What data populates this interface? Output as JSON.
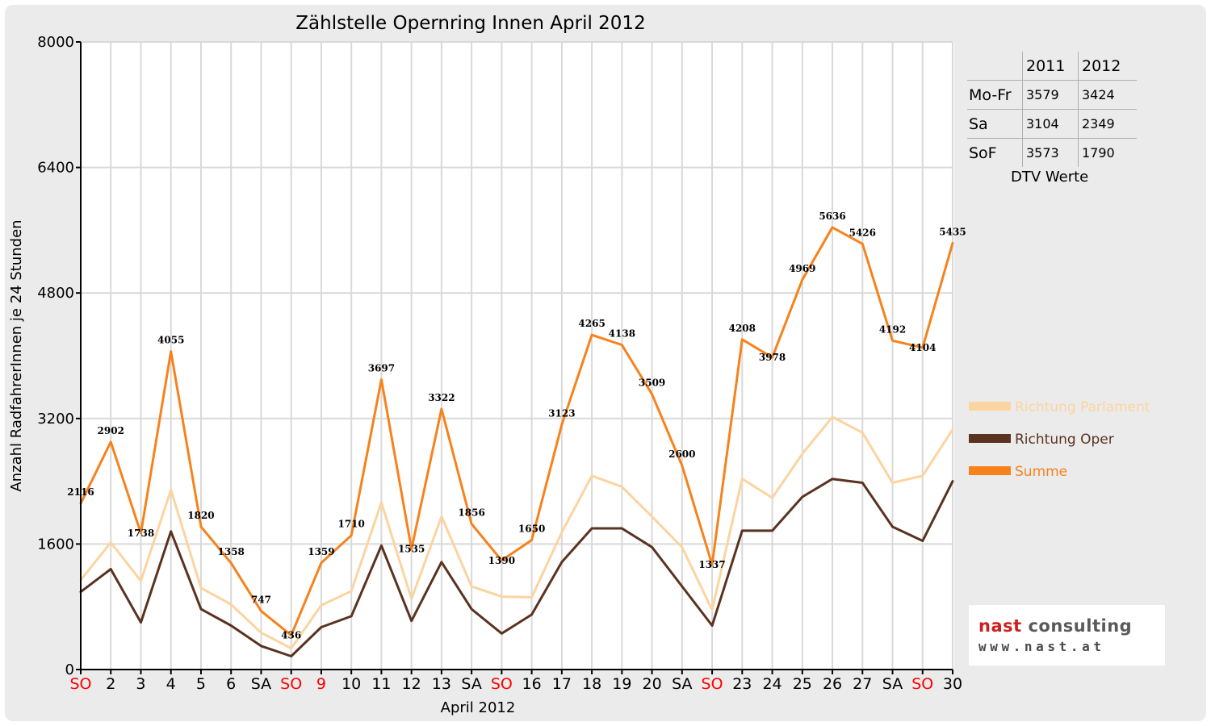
{
  "chart_data": {
    "type": "line",
    "title": "Zählstelle Opernring Innen April 2012",
    "xlabel": "April 2012",
    "ylabel": "Anzahl RadfahrerInnen je 24 Stunden",
    "ylim": [
      0,
      8000
    ],
    "yticks": [
      "0",
      "1600",
      "3200",
      "4800",
      "6400",
      "8000"
    ],
    "grid": true,
    "legend_position": "right",
    "categories": [
      "SO",
      "2",
      "3",
      "4",
      "5",
      "6",
      "SA",
      "SO",
      "9",
      "10",
      "11",
      "12",
      "13",
      "SA",
      "SO",
      "16",
      "17",
      "18",
      "19",
      "20",
      "SA",
      "SO",
      "23",
      "24",
      "25",
      "26",
      "27",
      "SA",
      "SO",
      "30"
    ],
    "red_categories": [
      0,
      7,
      8,
      14,
      21,
      28
    ],
    "series": [
      {
        "name": "Richtung Parlament",
        "color": "#fbd4a0",
        "width": 3,
        "values": [
          1140,
          1620,
          1130,
          2290,
          1040,
          830,
          470,
          270,
          820,
          1000,
          2130,
          900,
          1950,
          1060,
          930,
          920,
          1750,
          2470,
          2330,
          1950,
          1560,
          760,
          2430,
          2190,
          2750,
          3220,
          3020,
          2380,
          2470,
          3060
        ]
      },
      {
        "name": "Richtung Oper",
        "color": "#5a3320",
        "width": 3,
        "values": [
          990,
          1280,
          600,
          1760,
          770,
          560,
          300,
          170,
          540,
          680,
          1580,
          620,
          1370,
          770,
          460,
          700,
          1370,
          1800,
          1800,
          1560,
          1060,
          560,
          1770,
          1770,
          2200,
          2430,
          2380,
          1820,
          1640,
          2400
        ]
      },
      {
        "name": "Summe",
        "color": "#f7821b",
        "width": 3,
        "values": [
          2116,
          2902,
          1738,
          4055,
          1820,
          1358,
          747,
          436,
          1359,
          1710,
          3697,
          1535,
          3322,
          1856,
          1390,
          1650,
          3123,
          4265,
          4138,
          3509,
          2600,
          1337,
          4208,
          3978,
          4969,
          5636,
          5426,
          4192,
          4104,
          5435
        ],
        "labels": [
          "2116",
          "2902",
          "1738",
          "4055",
          "1820",
          "1358",
          "747",
          "436",
          "1359",
          "1710",
          "3697",
          "1535",
          "3322",
          "1856",
          "1390",
          "1650",
          "3123",
          "4265",
          "4138",
          "3509",
          "2600",
          "1337",
          "4208",
          "3978",
          "4969",
          "5636",
          "5426",
          "4192",
          "4104",
          "5435"
        ]
      }
    ],
    "colors": {
      "weekday": "#000000",
      "holiday": "#ff0000",
      "grid": "#d9d9d9",
      "background": "#ebebeb"
    }
  },
  "dtv_table": {
    "columns": [
      "2011",
      "2012"
    ],
    "rows": [
      {
        "label": "Mo-Fr",
        "v2011": "3579",
        "v2012": "3424"
      },
      {
        "label": "Sa",
        "v2011": "3104",
        "v2012": "2349"
      },
      {
        "label": "SoF",
        "v2011": "3573",
        "v2012": "1790"
      }
    ],
    "caption": "DTV Werte"
  },
  "logo": {
    "name_part1": "nast",
    "name_part2": "consulting",
    "url": "www.nast.at",
    "colors": {
      "name_part1": "#cc1f1f",
      "name_part2": "#5a5a5a"
    }
  }
}
